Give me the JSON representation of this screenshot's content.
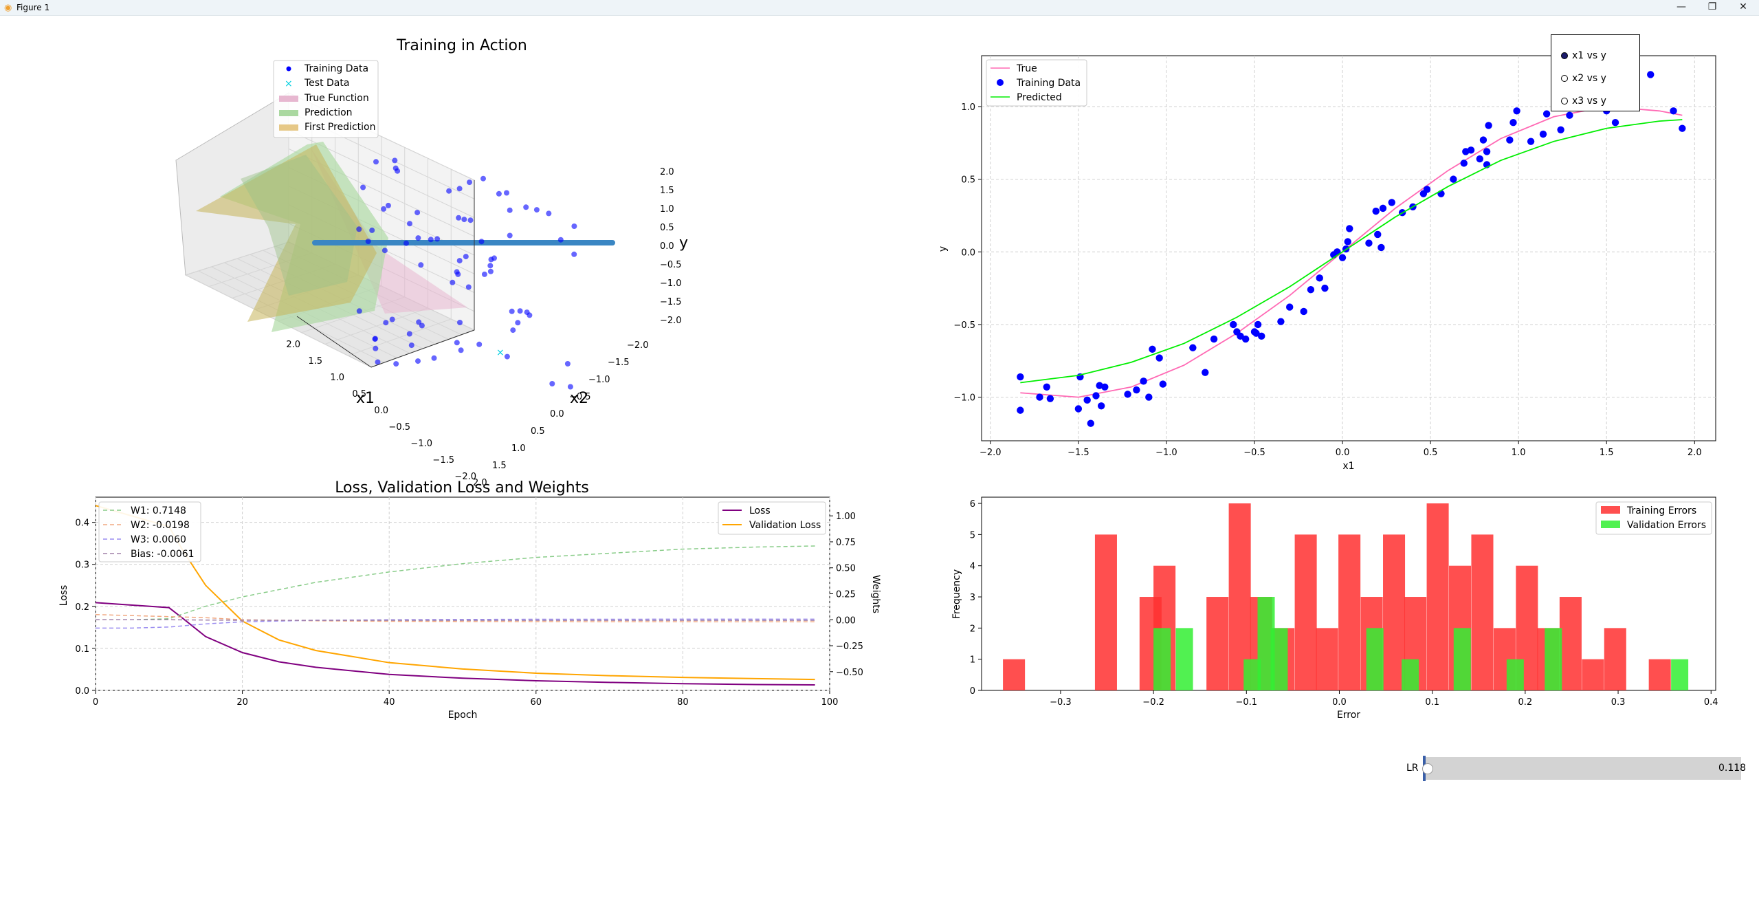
{
  "window": {
    "title": "Figure 1",
    "buttons": {
      "minimize": "—",
      "maximize": "❐",
      "close": "✕"
    },
    "icons": [
      "matplotlib-icon"
    ]
  },
  "panel_3d": {
    "title": "Training in Action",
    "xlabel": "x1",
    "ylabel": "x2",
    "zlabel": "y",
    "x_ticks": [
      "2.0",
      "1.5",
      "1.0",
      "0.5",
      "0.0",
      "−0.5",
      "−1.0",
      "−1.5",
      "−2.0"
    ],
    "y_ticks": [
      "−2.0",
      "−1.5",
      "−1.0",
      "−0.5",
      "0.0",
      "0.5",
      "1.0",
      "1.5",
      "2.0"
    ],
    "z_ticks": [
      "2.0",
      "1.5",
      "1.0",
      "0.5",
      "0.0",
      "−0.5",
      "−1.0",
      "−1.5",
      "−2.0"
    ],
    "legend": [
      "Training Data",
      "Test Data",
      "True Function",
      "Prediction",
      "First Prediction"
    ]
  },
  "check_buttons": {
    "items": [
      {
        "label": "x1 vs y",
        "checked": true
      },
      {
        "label": "x2 vs y",
        "checked": false
      },
      {
        "label": "x3 vs y",
        "checked": false
      }
    ]
  },
  "slider": {
    "label": "LR",
    "value": "0.118",
    "fraction": 0.0
  },
  "colors": {
    "training_blue": "#0000ff",
    "true_pink": "#ff69b4",
    "pred_green": "#00ee00",
    "loss_purple": "#800080",
    "val_orange": "#ffa500",
    "hist_red": "#ff3030",
    "hist_green": "#33ee33"
  },
  "chart_data": [
    {
      "type": "scatter",
      "xlabel": "x1",
      "ylabel": "y",
      "xlim": [
        -2.05,
        2.12
      ],
      "ylim": [
        -1.3,
        1.35
      ],
      "x_ticks": [
        -2.0,
        -1.5,
        -1.0,
        -0.5,
        0.0,
        0.5,
        1.0,
        1.5,
        2.0
      ],
      "y_ticks": [
        -1.0,
        -0.5,
        0.0,
        0.5,
        1.0
      ],
      "x_tick_labels": [
        "−2.0",
        "−1.5",
        "−1.0",
        "−0.5",
        "0.0",
        "0.5",
        "1.0",
        "1.5",
        "2.0"
      ],
      "y_tick_labels": [
        "−1.0",
        "−0.5",
        "0.0",
        "0.5",
        "1.0"
      ],
      "grid": true,
      "legend": "top-left",
      "series": [
        {
          "name": "True",
          "type": "line",
          "x": [
            -1.83,
            -1.5,
            -1.2,
            -0.9,
            -0.6,
            -0.3,
            0.0,
            0.3,
            0.6,
            0.9,
            1.2,
            1.5,
            1.8,
            1.93
          ],
          "y": [
            -0.97,
            -1.0,
            -0.93,
            -0.78,
            -0.56,
            -0.3,
            0.0,
            0.3,
            0.56,
            0.78,
            0.93,
            1.0,
            0.97,
            0.94
          ]
        },
        {
          "name": "Training Data",
          "type": "scatter",
          "x": [
            -1.83,
            -1.83,
            -1.72,
            -1.68,
            -1.66,
            -1.5,
            -1.49,
            -1.45,
            -1.43,
            -1.4,
            -1.38,
            -1.37,
            -1.35,
            -1.22,
            -1.17,
            -1.13,
            -1.1,
            -1.08,
            -1.04,
            -1.02,
            -0.85,
            -0.78,
            -0.73,
            -0.62,
            -0.6,
            -0.58,
            -0.55,
            -0.5,
            -0.49,
            -0.48,
            -0.46,
            -0.35,
            -0.3,
            -0.22,
            -0.18,
            -0.13,
            -0.1,
            -0.05,
            -0.03,
            0.0,
            0.02,
            0.03,
            0.04,
            0.15,
            0.19,
            0.2,
            0.22,
            0.23,
            0.28,
            0.34,
            0.4,
            0.46,
            0.48,
            0.56,
            0.63,
            0.69,
            0.7,
            0.73,
            0.78,
            0.8,
            0.82,
            0.82,
            0.83,
            0.95,
            0.97,
            0.99,
            1.07,
            1.14,
            1.16,
            1.24,
            1.29,
            1.5,
            1.55,
            1.75,
            1.88,
            1.93
          ],
          "y": [
            -0.86,
            -1.09,
            -1.0,
            -0.93,
            -1.01,
            -1.08,
            -0.86,
            -1.02,
            -1.18,
            -0.99,
            -0.92,
            -1.06,
            -0.93,
            -0.98,
            -0.95,
            -0.89,
            -1.0,
            -0.67,
            -0.73,
            -0.91,
            -0.66,
            -0.83,
            -0.6,
            -0.5,
            -0.55,
            -0.58,
            -0.6,
            -0.55,
            -0.56,
            -0.5,
            -0.58,
            -0.48,
            -0.38,
            -0.41,
            -0.26,
            -0.18,
            -0.25,
            -0.02,
            0.0,
            -0.04,
            0.02,
            0.07,
            0.16,
            0.06,
            0.28,
            0.12,
            0.03,
            0.3,
            0.34,
            0.27,
            0.31,
            0.4,
            0.43,
            0.4,
            0.5,
            0.61,
            0.69,
            0.7,
            0.64,
            0.77,
            0.6,
            0.69,
            0.87,
            0.77,
            0.89,
            0.97,
            0.76,
            0.81,
            0.95,
            0.84,
            0.94,
            0.97,
            0.89,
            1.22,
            0.97,
            0.85
          ]
        },
        {
          "name": "Predicted",
          "type": "line",
          "x": [
            -1.83,
            -1.5,
            -1.2,
            -0.9,
            -0.6,
            -0.3,
            0.0,
            0.3,
            0.6,
            0.9,
            1.2,
            1.5,
            1.8,
            1.93
          ],
          "y": [
            -0.9,
            -0.85,
            -0.76,
            -0.63,
            -0.45,
            -0.24,
            0.0,
            0.24,
            0.45,
            0.63,
            0.76,
            0.85,
            0.9,
            0.91
          ]
        }
      ]
    },
    {
      "type": "line",
      "title": "Loss, Validation Loss and Weights",
      "xlabel": "Epoch",
      "ylabel": "Loss",
      "ylabel_right": "Weights",
      "xlim": [
        0,
        100
      ],
      "ylim": [
        0,
        0.46
      ],
      "ylim_right": [
        -0.68,
        1.18
      ],
      "x_ticks": [
        0,
        20,
        40,
        60,
        80,
        100
      ],
      "y_ticks": [
        0.0,
        0.1,
        0.2,
        0.3,
        0.4
      ],
      "y_ticks_right": [
        -0.5,
        -0.25,
        0.0,
        0.25,
        0.5,
        0.75,
        1.0
      ],
      "x_tick_labels": [
        "0",
        "20",
        "40",
        "60",
        "80",
        "100"
      ],
      "y_tick_labels": [
        "0.0",
        "0.1",
        "0.2",
        "0.3",
        "0.4"
      ],
      "y_tick_labels_right": [
        "−0.50",
        "−0.25",
        "0.00",
        "0.25",
        "0.50",
        "0.75",
        "1.00"
      ],
      "grid": true,
      "legend_left": [
        "W1: 0.7148",
        "W2: -0.0198",
        "W3: 0.0060",
        "Bias: -0.0061"
      ],
      "legend_right": [
        "Loss",
        "Validation Loss"
      ],
      "series": [
        {
          "name": "Loss",
          "axis": "left",
          "x": [
            0,
            5,
            10,
            12,
            15,
            20,
            25,
            30,
            40,
            50,
            60,
            70,
            80,
            90,
            98
          ],
          "y": [
            0.209,
            0.203,
            0.197,
            0.17,
            0.128,
            0.09,
            0.068,
            0.055,
            0.038,
            0.029,
            0.023,
            0.019,
            0.016,
            0.014,
            0.013
          ]
        },
        {
          "name": "Validation Loss",
          "axis": "left",
          "x": [
            0,
            5,
            10,
            12,
            15,
            20,
            25,
            30,
            40,
            50,
            60,
            70,
            80,
            90,
            98
          ],
          "y": [
            0.44,
            0.415,
            0.39,
            0.33,
            0.25,
            0.165,
            0.12,
            0.095,
            0.066,
            0.051,
            0.041,
            0.035,
            0.031,
            0.028,
            0.026
          ]
        },
        {
          "name": "W1: 0.7148",
          "axis": "right",
          "x": [
            0,
            5,
            10,
            15,
            20,
            30,
            40,
            50,
            60,
            70,
            80,
            90,
            98
          ],
          "y": [
            0.0,
            0.0,
            0.01,
            0.13,
            0.22,
            0.36,
            0.46,
            0.54,
            0.6,
            0.64,
            0.68,
            0.7,
            0.71
          ]
        },
        {
          "name": "W2: -0.0198",
          "axis": "right",
          "x": [
            0,
            5,
            10,
            15,
            20,
            30,
            40,
            50,
            60,
            70,
            80,
            90,
            98
          ],
          "y": [
            0.05,
            0.04,
            0.03,
            0.02,
            0.0,
            -0.01,
            -0.015,
            -0.017,
            -0.018,
            -0.019,
            -0.019,
            -0.02,
            -0.02
          ]
        },
        {
          "name": "W3: 0.0060",
          "axis": "right",
          "x": [
            0,
            5,
            10,
            15,
            20,
            30,
            40,
            50,
            60,
            70,
            80,
            90,
            98
          ],
          "y": [
            -0.08,
            -0.08,
            -0.07,
            -0.04,
            -0.02,
            -0.005,
            0.0,
            0.003,
            0.005,
            0.005,
            0.006,
            0.006,
            0.006
          ]
        },
        {
          "name": "Bias: -0.0061",
          "axis": "right",
          "x": [
            0,
            5,
            10,
            15,
            20,
            30,
            40,
            50,
            60,
            70,
            80,
            90,
            98
          ],
          "y": [
            0.0,
            0.0,
            0.0,
            -0.003,
            -0.005,
            -0.006,
            -0.006,
            -0.006,
            -0.006,
            -0.006,
            -0.006,
            -0.006,
            -0.006
          ]
        }
      ]
    },
    {
      "type": "bar",
      "xlabel": "Error",
      "ylabel": "Frequency",
      "xlim": [
        -0.385,
        0.405
      ],
      "ylim": [
        0,
        6.2
      ],
      "x_ticks": [
        -0.3,
        -0.2,
        -0.1,
        0.0,
        0.1,
        0.2,
        0.3,
        0.4
      ],
      "y_ticks": [
        0,
        1,
        2,
        3,
        4,
        5,
        6
      ],
      "x_tick_labels": [
        "−0.3",
        "−0.2",
        "−0.1",
        "0.0",
        "0.1",
        "0.2",
        "0.3",
        "0.4"
      ],
      "y_tick_labels": [
        "0",
        "1",
        "2",
        "3",
        "4",
        "5",
        "6"
      ],
      "legend": "top-right",
      "series": [
        {
          "name": "Training Errors",
          "bin_start": [
            -0.362,
            -0.263,
            -0.215,
            -0.2,
            -0.143,
            -0.119,
            -0.096,
            -0.072,
            -0.048,
            -0.025,
            -0.001,
            0.023,
            0.047,
            0.07,
            0.094,
            0.118,
            0.142,
            0.166,
            0.19,
            0.213,
            0.237,
            0.261,
            0.285,
            0.333
          ],
          "bin_width": 0.0237,
          "values": [
            1,
            5,
            3,
            4,
            3,
            6,
            3,
            2,
            5,
            2,
            5,
            3,
            5,
            3,
            6,
            4,
            5,
            2,
            4,
            2,
            3,
            1,
            2,
            1
          ]
        },
        {
          "name": "Validation Errors",
          "bin_start": [
            -0.2,
            -0.176,
            -0.103,
            -0.088,
            -0.074,
            0.029,
            0.067,
            0.123,
            0.18,
            0.221,
            0.357
          ],
          "bin_width": 0.0185,
          "values": [
            2,
            2,
            1,
            3,
            2,
            2,
            1,
            2,
            1,
            2,
            1
          ]
        }
      ]
    }
  ]
}
